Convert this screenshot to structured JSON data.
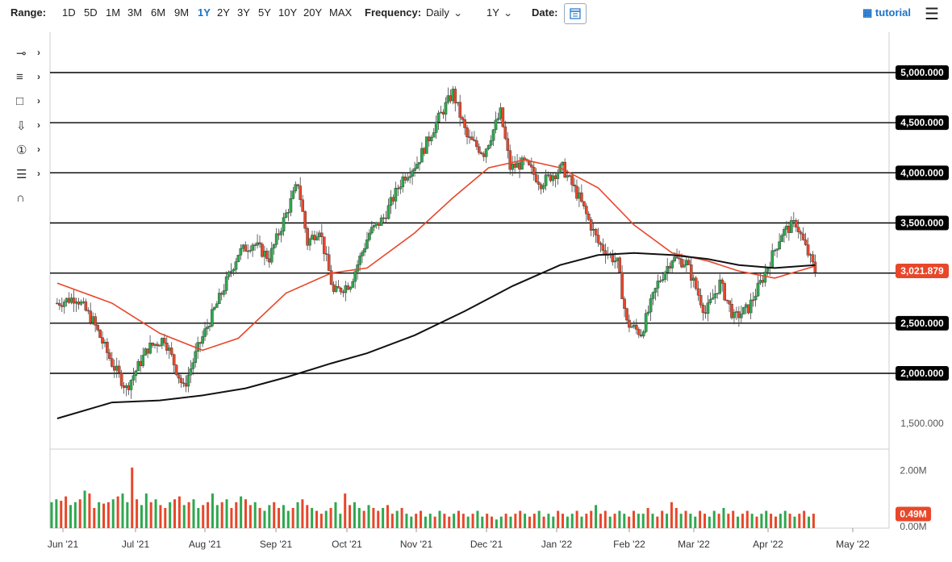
{
  "toolbar": {
    "range_label": "Range:",
    "ranges": [
      "1D",
      "5D",
      "1M",
      "3M",
      "6M",
      "9M",
      "1Y",
      "2Y",
      "3Y",
      "5Y",
      "10Y",
      "20Y",
      "MAX"
    ],
    "active_range": "1Y",
    "frequency_label": "Frequency:",
    "frequency_value": "Daily",
    "period_value": "1Y",
    "date_label": "Date:",
    "tutorial_label": "tutorial",
    "accent_color": "#1a73c8"
  },
  "tools": [
    {
      "icon": "crosshair-icon"
    },
    {
      "icon": "trendline-icon"
    },
    {
      "icon": "rectangle-icon"
    },
    {
      "icon": "arrow-down-icon"
    },
    {
      "icon": "number-marker-icon"
    },
    {
      "icon": "fibonacci-icon"
    },
    {
      "icon": "magnet-icon"
    }
  ],
  "chart_data": {
    "type": "candlestick",
    "title": "",
    "x_tick_labels": [
      "Jun '21",
      "Jul '21",
      "Aug '21",
      "Sep '21",
      "Oct '21",
      "Nov '21",
      "Dec '21",
      "Jan '22",
      "Feb '22",
      "Mar '22",
      "Apr '22",
      "May '22"
    ],
    "price_axis": {
      "ylim": [
        1400,
        5200
      ],
      "tick_labels": [
        "5,000.000",
        "4,500.000",
        "4,000.000",
        "3,500.000",
        "3,000.000",
        "2,500.000",
        "2,000.000",
        "1,500.000"
      ],
      "highlighted_levels": [
        {
          "value": 5000,
          "label": "5,000.000"
        },
        {
          "value": 4500,
          "label": "4,500.000"
        },
        {
          "value": 4000,
          "label": "4,000.000"
        },
        {
          "value": 3500,
          "label": "3,500.000"
        },
        {
          "value": 2500,
          "label": "2,500.000"
        },
        {
          "value": 2000,
          "label": "2,000.000"
        }
      ],
      "last_price": {
        "value": 3021.879,
        "label": "3,021.879",
        "color": "#e8472a"
      }
    },
    "horizontal_lines": [
      5000,
      4500,
      4000,
      3500,
      3000,
      2500,
      2000
    ],
    "price_path": [
      [
        "2021-05-28",
        2700
      ],
      [
        "2021-06-05",
        2760
      ],
      [
        "2021-06-12",
        2520
      ],
      [
        "2021-06-20",
        2100
      ],
      [
        "2021-06-26",
        1850
      ],
      [
        "2021-07-05",
        2250
      ],
      [
        "2021-07-12",
        2350
      ],
      [
        "2021-07-20",
        1850
      ],
      [
        "2021-07-26",
        2250
      ],
      [
        "2021-08-05",
        2800
      ],
      [
        "2021-08-12",
        3200
      ],
      [
        "2021-08-18",
        3300
      ],
      [
        "2021-08-25",
        3150
      ],
      [
        "2021-09-06",
        3900
      ],
      [
        "2021-09-10",
        3300
      ],
      [
        "2021-09-15",
        3450
      ],
      [
        "2021-09-21",
        2800
      ],
      [
        "2021-09-28",
        2900
      ],
      [
        "2021-10-06",
        3400
      ],
      [
        "2021-10-12",
        3550
      ],
      [
        "2021-10-20",
        3950
      ],
      [
        "2021-10-26",
        4100
      ],
      [
        "2021-11-03",
        4500
      ],
      [
        "2021-11-10",
        4800
      ],
      [
        "2021-11-16",
        4350
      ],
      [
        "2021-11-23",
        4200
      ],
      [
        "2021-11-30",
        4600
      ],
      [
        "2021-12-04",
        4050
      ],
      [
        "2021-12-10",
        4100
      ],
      [
        "2021-12-17",
        3900
      ],
      [
        "2021-12-26",
        4050
      ],
      [
        "2022-01-02",
        3750
      ],
      [
        "2022-01-10",
        3300
      ],
      [
        "2022-01-18",
        3100
      ],
      [
        "2022-01-22",
        2500
      ],
      [
        "2022-01-28",
        2400
      ],
      [
        "2022-02-04",
        2900
      ],
      [
        "2022-02-10",
        3150
      ],
      [
        "2022-02-16",
        3100
      ],
      [
        "2022-02-24",
        2600
      ],
      [
        "2022-03-02",
        2900
      ],
      [
        "2022-03-08",
        2550
      ],
      [
        "2022-03-14",
        2650
      ],
      [
        "2022-03-20",
        2950
      ],
      [
        "2022-03-28",
        3400
      ],
      [
        "2022-04-03",
        3500
      ],
      [
        "2022-04-07",
        3250
      ],
      [
        "2022-04-11",
        3022
      ]
    ],
    "series": [
      {
        "name": "",
        "type": "moving-average",
        "color": "#e8472a",
        "points": [
          [
            "2021-05-28",
            2900
          ],
          [
            "2021-06-20",
            2700
          ],
          [
            "2021-07-10",
            2400
          ],
          [
            "2021-07-28",
            2230
          ],
          [
            "2021-08-12",
            2350
          ],
          [
            "2021-09-01",
            2800
          ],
          [
            "2021-09-20",
            3000
          ],
          [
            "2021-10-05",
            3050
          ],
          [
            "2021-10-25",
            3400
          ],
          [
            "2021-11-10",
            3750
          ],
          [
            "2021-11-25",
            4050
          ],
          [
            "2021-12-10",
            4130
          ],
          [
            "2021-12-25",
            4050
          ],
          [
            "2022-01-10",
            3850
          ],
          [
            "2022-01-25",
            3480
          ],
          [
            "2022-02-10",
            3200
          ],
          [
            "2022-02-25",
            3120
          ],
          [
            "2022-03-10",
            3020
          ],
          [
            "2022-03-25",
            2950
          ],
          [
            "2022-04-11",
            3070
          ]
        ]
      },
      {
        "name": "",
        "type": "moving-average",
        "color": "#111111",
        "points": [
          [
            "2021-05-28",
            1550
          ],
          [
            "2021-06-20",
            1710
          ],
          [
            "2021-07-10",
            1730
          ],
          [
            "2021-07-28",
            1780
          ],
          [
            "2021-08-15",
            1850
          ],
          [
            "2021-09-01",
            1960
          ],
          [
            "2021-09-20",
            2100
          ],
          [
            "2021-10-05",
            2200
          ],
          [
            "2021-10-25",
            2380
          ],
          [
            "2021-11-15",
            2620
          ],
          [
            "2021-12-05",
            2870
          ],
          [
            "2021-12-25",
            3080
          ],
          [
            "2022-01-10",
            3180
          ],
          [
            "2022-01-25",
            3200
          ],
          [
            "2022-02-10",
            3180
          ],
          [
            "2022-02-25",
            3140
          ],
          [
            "2022-03-10",
            3080
          ],
          [
            "2022-03-25",
            3050
          ],
          [
            "2022-04-11",
            3080
          ]
        ]
      }
    ],
    "volume": {
      "axis_labels": [
        "2.00M",
        "0.00M"
      ],
      "ylim": [
        0,
        2.6
      ],
      "last_label": "0.49M",
      "up_color": "#2ea84f",
      "down_color": "#e8472a",
      "bars_millions": [
        0.9,
        1.0,
        0.95,
        1.1,
        0.8,
        0.9,
        1.0,
        1.3,
        1.2,
        0.7,
        0.9,
        0.85,
        0.9,
        1.0,
        1.1,
        1.2,
        0.9,
        2.1,
        1.0,
        0.8,
        1.2,
        0.9,
        1.0,
        0.8,
        0.7,
        0.9,
        1.0,
        1.1,
        0.8,
        0.9,
        1.0,
        0.7,
        0.8,
        0.9,
        1.2,
        0.8,
        0.9,
        1.0,
        0.7,
        0.9,
        1.1,
        1.0,
        0.8,
        0.9,
        0.7,
        0.6,
        0.8,
        0.9,
        0.7,
        0.8,
        0.6,
        0.7,
        0.9,
        1.0,
        0.8,
        0.7,
        0.6,
        0.5,
        0.6,
        0.7,
        0.9,
        0.5,
        1.2,
        0.8,
        0.9,
        0.7,
        0.6,
        0.8,
        0.7,
        0.6,
        0.7,
        0.8,
        0.5,
        0.6,
        0.7,
        0.5,
        0.4,
        0.5,
        0.6,
        0.4,
        0.5,
        0.4,
        0.6,
        0.5,
        0.4,
        0.5,
        0.6,
        0.5,
        0.4,
        0.5,
        0.6,
        0.4,
        0.5,
        0.4,
        0.3,
        0.4,
        0.5,
        0.4,
        0.5,
        0.6,
        0.5,
        0.4,
        0.5,
        0.6,
        0.4,
        0.5,
        0.4,
        0.6,
        0.5,
        0.4,
        0.5,
        0.6,
        0.4,
        0.5,
        0.6,
        0.8,
        0.5,
        0.6,
        0.4,
        0.5,
        0.6,
        0.5,
        0.4,
        0.6,
        0.5,
        0.5,
        0.7,
        0.5,
        0.4,
        0.6,
        0.5,
        0.9,
        0.7,
        0.5,
        0.6,
        0.5,
        0.4,
        0.6,
        0.5,
        0.4,
        0.6,
        0.5,
        0.7,
        0.5,
        0.6,
        0.4,
        0.5,
        0.6,
        0.5,
        0.4,
        0.5,
        0.6,
        0.5,
        0.4,
        0.5,
        0.6,
        0.5,
        0.4,
        0.5,
        0.6,
        0.4,
        0.5
      ]
    }
  }
}
